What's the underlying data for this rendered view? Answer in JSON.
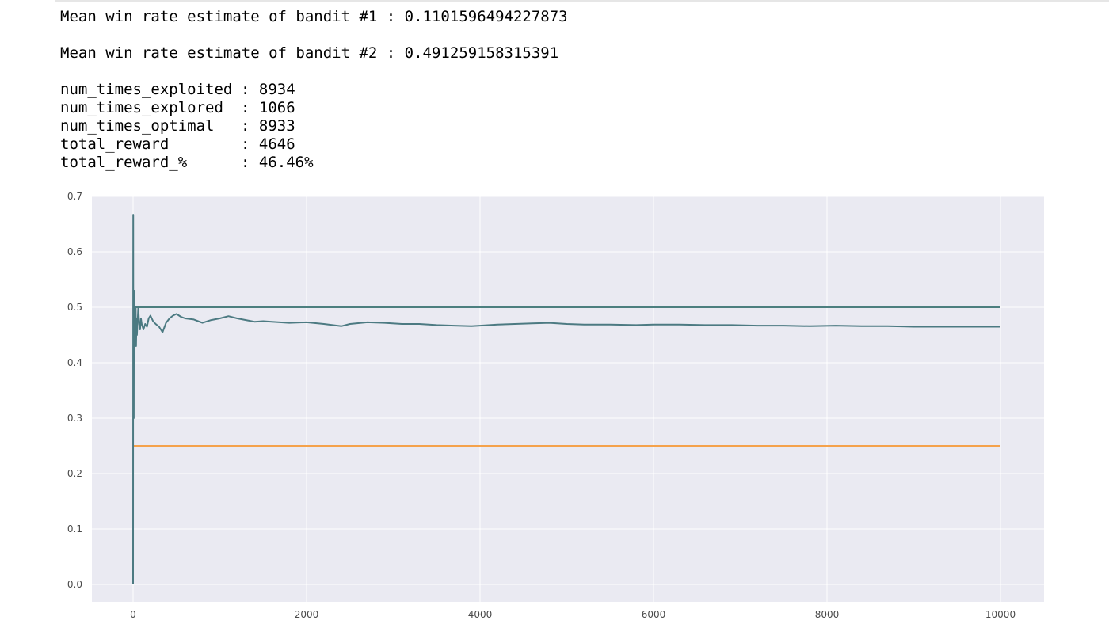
{
  "output": {
    "line1": "Mean win rate estimate of bandit #1 : 0.1101596494227873",
    "line2": "Mean win rate estimate of bandit #2 : 0.491259158315391",
    "stats": [
      {
        "key": "num_times_exploited",
        "value": ": 8934"
      },
      {
        "key": "num_times_explored",
        "value": ": 1066"
      },
      {
        "key": "num_times_optimal",
        "value": ": 8933"
      },
      {
        "key": "total_reward",
        "value": ": 4646"
      },
      {
        "key": "total_reward_%",
        "value": ": 46.46%"
      }
    ]
  },
  "chart_data": {
    "type": "line",
    "title": "",
    "xlabel": "",
    "ylabel": "",
    "xlim": [
      0,
      10000
    ],
    "ylim": [
      0,
      0.7
    ],
    "grid": true,
    "background": "#eaeaf2",
    "x_ticks": [
      0,
      2000,
      4000,
      6000,
      8000,
      10000
    ],
    "x_tick_labels": [
      "0",
      "2000",
      "4000",
      "6000",
      "8000",
      "10000"
    ],
    "y_ticks": [
      0.0,
      0.1,
      0.2,
      0.3,
      0.4,
      0.5,
      0.6,
      0.7
    ],
    "y_tick_labels": [
      "0.0",
      "0.1",
      "0.2",
      "0.3",
      "0.4",
      "0.5",
      "0.6",
      "0.7"
    ],
    "series": [
      {
        "color": "#4c7f7f",
        "x": [
          0,
          10000
        ],
        "y": [
          0.5,
          0.5
        ]
      },
      {
        "color": "#f5a24b",
        "x": [
          0,
          10000
        ],
        "y": [
          0.25,
          0.25
        ]
      },
      {
        "color": "#4c7a82",
        "x": [
          0,
          1,
          2,
          3,
          5,
          8,
          10,
          13,
          16,
          20,
          25,
          30,
          35,
          40,
          45,
          50,
          60,
          70,
          80,
          90,
          100,
          120,
          140,
          160,
          180,
          200,
          230,
          260,
          300,
          340,
          380,
          420,
          460,
          500,
          550,
          600,
          700,
          800,
          900,
          1000,
          1100,
          1200,
          1300,
          1400,
          1500,
          1600,
          1800,
          2000,
          2200,
          2400,
          2500,
          2700,
          2900,
          3100,
          3300,
          3500,
          3700,
          3900,
          4000,
          4200,
          4400,
          4600,
          4800,
          5000,
          5200,
          5500,
          5800,
          6000,
          6300,
          6600,
          6900,
          7200,
          7500,
          7800,
          8100,
          8400,
          8700,
          9000,
          9300,
          9600,
          10000
        ],
        "y": [
          0.0,
          0.5,
          0.667,
          0.4,
          0.375,
          0.3,
          0.5,
          0.46,
          0.53,
          0.45,
          0.44,
          0.5,
          0.43,
          0.48,
          0.45,
          0.47,
          0.5,
          0.47,
          0.46,
          0.48,
          0.47,
          0.46,
          0.47,
          0.465,
          0.48,
          0.485,
          0.475,
          0.47,
          0.465,
          0.455,
          0.472,
          0.48,
          0.485,
          0.488,
          0.483,
          0.48,
          0.478,
          0.472,
          0.477,
          0.48,
          0.484,
          0.48,
          0.477,
          0.474,
          0.475,
          0.474,
          0.472,
          0.473,
          0.47,
          0.466,
          0.47,
          0.473,
          0.472,
          0.47,
          0.47,
          0.468,
          0.467,
          0.466,
          0.467,
          0.469,
          0.47,
          0.471,
          0.472,
          0.47,
          0.469,
          0.469,
          0.468,
          0.469,
          0.469,
          0.468,
          0.468,
          0.467,
          0.467,
          0.466,
          0.467,
          0.466,
          0.466,
          0.465,
          0.465,
          0.465,
          0.465
        ]
      }
    ]
  }
}
